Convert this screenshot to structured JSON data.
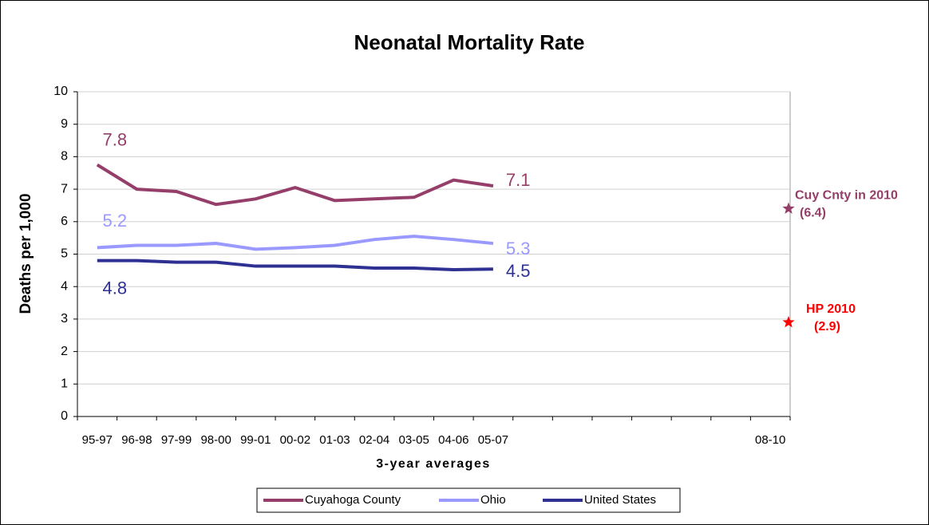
{
  "chart_data": {
    "type": "line",
    "title": "Neonatal Mortality Rate",
    "xlabel": "3-year averages",
    "ylabel": "Deaths per 1,000",
    "categories": [
      "95-97",
      "96-98",
      "97-99",
      "98-00",
      "99-01",
      "00-02",
      "01-03",
      "02-04",
      "03-05",
      "04-06",
      "05-07",
      null,
      null,
      null,
      null,
      null,
      null,
      "08-10"
    ],
    "series": [
      {
        "name": "Cuyahoga County",
        "color": "#953e6a",
        "values": [
          7.75,
          7.0,
          6.93,
          6.53,
          6.7,
          7.05,
          6.65,
          6.7,
          6.75,
          7.28,
          7.1,
          null,
          null,
          null,
          null,
          null,
          null,
          null
        ],
        "value_labels": [
          "7.8",
          null,
          null,
          null,
          null,
          null,
          null,
          null,
          null,
          null,
          "7.1",
          null,
          null,
          null,
          null,
          null,
          null,
          null
        ]
      },
      {
        "name": "Ohio",
        "color": "#9999ff",
        "values": [
          5.2,
          5.27,
          5.27,
          5.33,
          5.15,
          5.2,
          5.27,
          5.45,
          5.55,
          5.45,
          5.33,
          null,
          null,
          null,
          null,
          null,
          null,
          null
        ],
        "value_labels": [
          "5.2",
          null,
          null,
          null,
          null,
          null,
          null,
          null,
          null,
          null,
          "5.3",
          null,
          null,
          null,
          null,
          null,
          null,
          null
        ]
      },
      {
        "name": "United States",
        "color": "#2e3192",
        "values": [
          4.8,
          4.8,
          4.75,
          4.75,
          4.63,
          4.63,
          4.63,
          4.57,
          4.57,
          4.52,
          4.54,
          null,
          null,
          null,
          null,
          null,
          null,
          null
        ],
        "value_labels": [
          "4.8",
          null,
          null,
          null,
          null,
          null,
          null,
          null,
          null,
          null,
          "4.5",
          null,
          null,
          null,
          null,
          null,
          null,
          null
        ]
      }
    ],
    "targets": [
      {
        "label": "Cuy Cnty in 2010",
        "value": 6.4,
        "value_label": "(6.4)",
        "color": "#953e6a"
      },
      {
        "label": "HP 2010",
        "value": 2.9,
        "value_label": "(2.9)",
        "color": "#ff0000"
      }
    ],
    "ylim": [
      0,
      10
    ],
    "yticks": [
      0,
      1,
      2,
      3,
      4,
      5,
      6,
      7,
      8,
      9,
      10
    ],
    "grid": true,
    "legend": "bottom"
  }
}
